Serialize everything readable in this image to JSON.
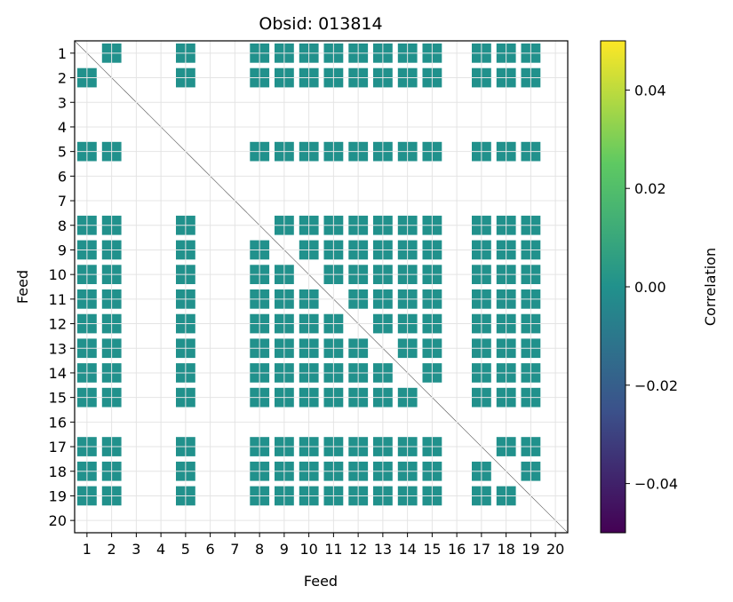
{
  "chart_data": {
    "type": "heatmap",
    "title": "Obsid: 013814",
    "xlabel": "Feed",
    "ylabel": "Feed",
    "feeds": [
      "1",
      "2",
      "3",
      "4",
      "5",
      "6",
      "7",
      "8",
      "9",
      "10",
      "11",
      "12",
      "13",
      "14",
      "15",
      "16",
      "17",
      "18",
      "19",
      "20"
    ],
    "inactive_feeds": [
      "3",
      "4",
      "6",
      "7",
      "16",
      "20"
    ],
    "correlation_value": 0.0,
    "xlim": [
      0.5,
      20.5
    ],
    "ylim": [
      0.5,
      20.5
    ],
    "grid": true,
    "colorbar": {
      "label": "Correlation",
      "range": [
        -0.05,
        0.05
      ],
      "ticks": [
        "0.04",
        "0.02",
        "0.00",
        "−0.02",
        "−0.04"
      ],
      "tick_values": [
        0.04,
        0.02,
        0.0,
        -0.02,
        -0.04
      ],
      "colormap": "viridis",
      "colors": [
        "#440154",
        "#3b528b",
        "#21918c",
        "#5ec962",
        "#fde725"
      ]
    },
    "cell_color": "#21918c"
  }
}
